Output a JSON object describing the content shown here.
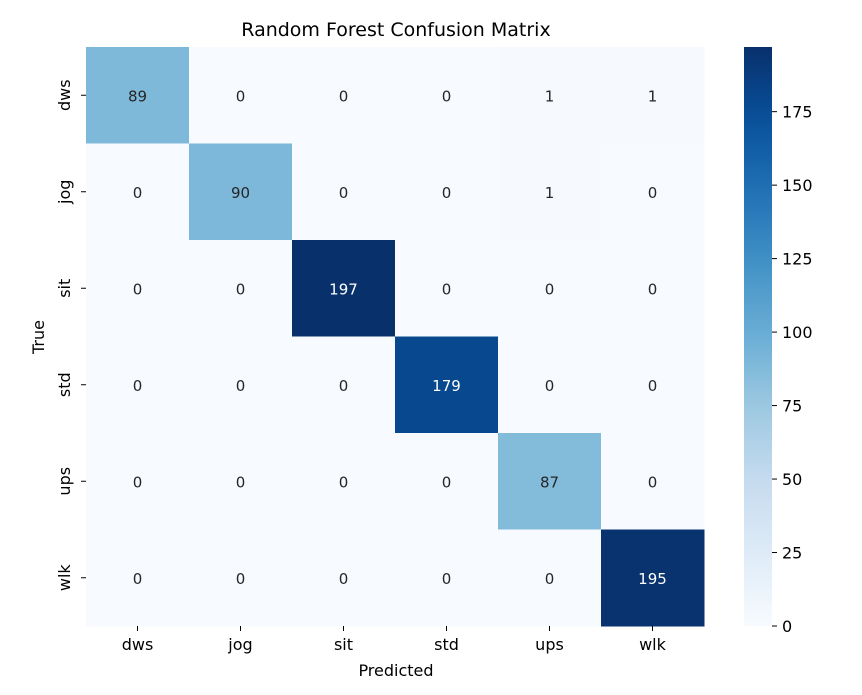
{
  "chart_data": {
    "type": "heatmap",
    "title": "Random Forest Confusion Matrix",
    "xlabel": "Predicted",
    "ylabel": "True",
    "x_categories": [
      "dws",
      "jog",
      "sit",
      "std",
      "ups",
      "wlk"
    ],
    "y_categories": [
      "dws",
      "jog",
      "sit",
      "std",
      "ups",
      "wlk"
    ],
    "values": [
      [
        89,
        0,
        0,
        0,
        1,
        1
      ],
      [
        0,
        90,
        0,
        0,
        1,
        0
      ],
      [
        0,
        0,
        197,
        0,
        0,
        0
      ],
      [
        0,
        0,
        0,
        179,
        0,
        0
      ],
      [
        0,
        0,
        0,
        0,
        87,
        0
      ],
      [
        0,
        0,
        0,
        0,
        0,
        195
      ]
    ],
    "colorbar": {
      "range": [
        0,
        197
      ],
      "ticks": [
        0,
        25,
        50,
        75,
        100,
        125,
        150,
        175
      ],
      "colormap": "Blues"
    },
    "annotations": "cell counts",
    "grid": false,
    "legend": "colorbar right"
  }
}
